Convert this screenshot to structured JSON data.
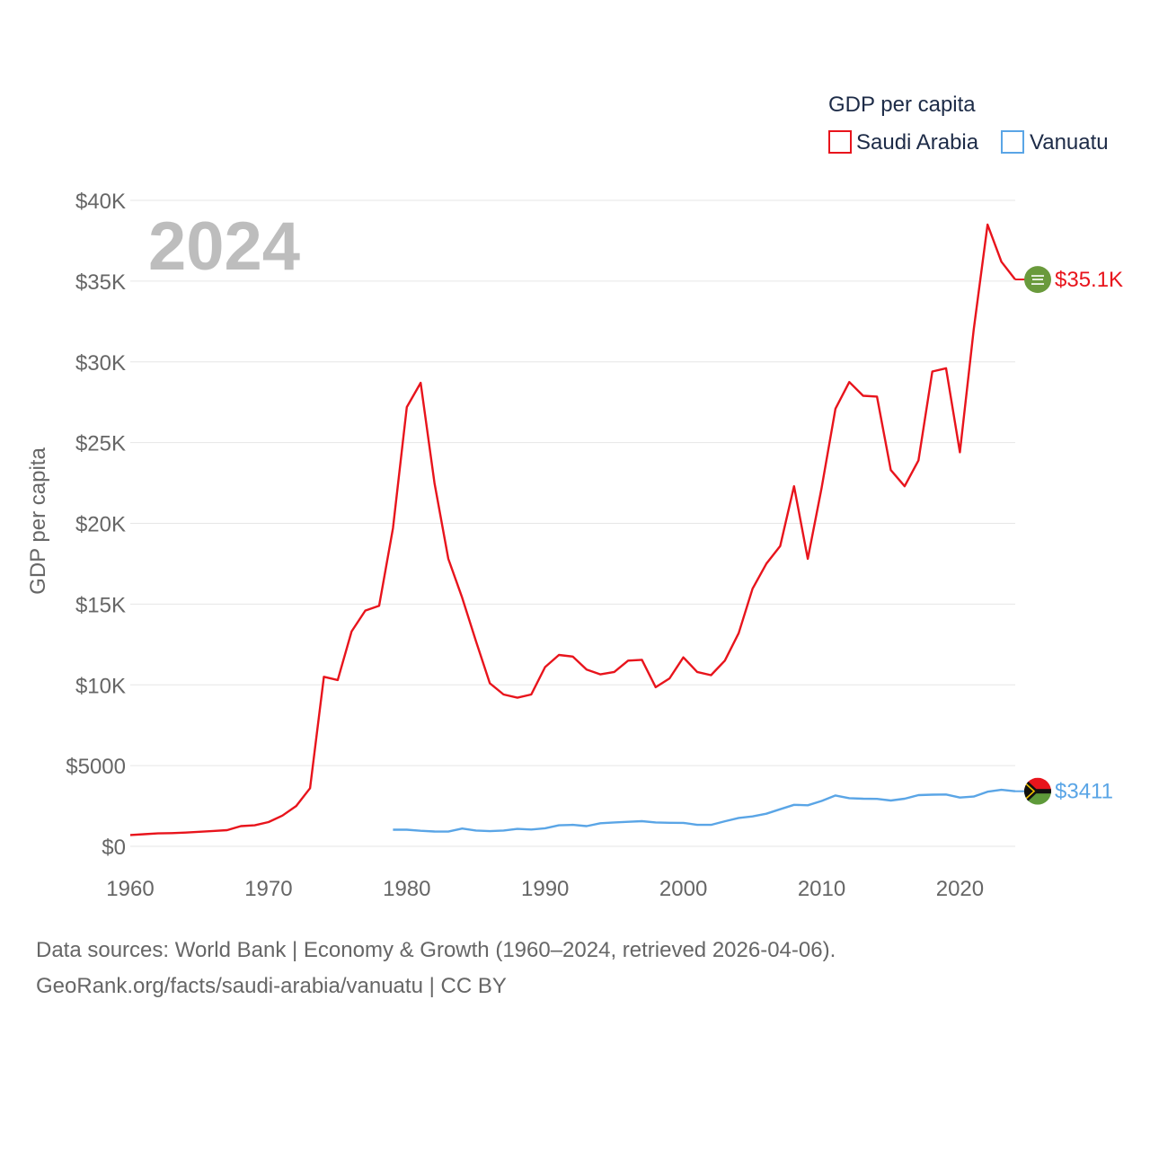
{
  "chart_data": {
    "type": "line",
    "title": "",
    "year_overlay": "2024",
    "xlabel": "",
    "ylabel": "GDP per capita",
    "xlim": [
      1960,
      2024
    ],
    "ylim": [
      0,
      40000
    ],
    "x_ticks": [
      1960,
      1970,
      1980,
      1990,
      2000,
      2010,
      2020
    ],
    "x_tick_labels": [
      "1960",
      "1970",
      "1980",
      "1990",
      "2000",
      "2010",
      "2020"
    ],
    "y_ticks": [
      0,
      5000,
      10000,
      15000,
      20000,
      25000,
      30000,
      35000,
      40000
    ],
    "y_tick_labels": [
      "$0",
      "$5000",
      "$10K",
      "$15K",
      "$20K",
      "$25K",
      "$30K",
      "$35K",
      "$40K"
    ],
    "grid": true,
    "legend": {
      "title": "GDP per capita",
      "position": "top-right"
    },
    "series": [
      {
        "name": "Saudi Arabia",
        "color": "#e8141c",
        "end_label": "$35.1K",
        "flag_icon": "saudi-arabia-flag-icon",
        "x": [
          1960,
          1961,
          1962,
          1963,
          1964,
          1965,
          1966,
          1967,
          1968,
          1969,
          1970,
          1971,
          1972,
          1973,
          1974,
          1975,
          1976,
          1977,
          1978,
          1979,
          1980,
          1981,
          1982,
          1983,
          1984,
          1985,
          1986,
          1987,
          1988,
          1989,
          1990,
          1991,
          1992,
          1993,
          1994,
          1995,
          1996,
          1997,
          1998,
          1999,
          2000,
          2001,
          2002,
          2003,
          2004,
          2005,
          2006,
          2007,
          2008,
          2009,
          2010,
          2011,
          2012,
          2013,
          2014,
          2015,
          2016,
          2017,
          2018,
          2019,
          2020,
          2021,
          2022,
          2023,
          2024
        ],
        "values": [
          700,
          750,
          800,
          820,
          850,
          900,
          950,
          1000,
          1250,
          1300,
          1500,
          1900,
          2500,
          3600,
          10500,
          10300,
          13300,
          14600,
          14900,
          19700,
          27200,
          28700,
          22500,
          17800,
          15400,
          12700,
          10100,
          9400,
          9200,
          9400,
          11100,
          11850,
          11750,
          10950,
          10650,
          10800,
          11500,
          11550,
          9850,
          10400,
          11700,
          10800,
          10600,
          11500,
          13200,
          15950,
          17500,
          18600,
          22300,
          17800,
          22200,
          27100,
          28750,
          27900,
          27850,
          23300,
          22300,
          23900,
          29400,
          29600,
          24400,
          32000,
          38500,
          36200,
          35100
        ]
      },
      {
        "name": "Vanuatu",
        "color": "#5aa5e6",
        "end_label": "$3411",
        "flag_icon": "vanuatu-flag-icon",
        "x": [
          1979,
          1980,
          1981,
          1982,
          1983,
          1984,
          1985,
          1986,
          1987,
          1988,
          1989,
          1990,
          1991,
          1992,
          1993,
          1994,
          1995,
          1996,
          1997,
          1998,
          1999,
          2000,
          2001,
          2002,
          2003,
          2004,
          2005,
          2006,
          2007,
          2008,
          2009,
          2010,
          2011,
          2012,
          2013,
          2014,
          2015,
          2016,
          2017,
          2018,
          2019,
          2020,
          2021,
          2022,
          2023,
          2024
        ],
        "values": [
          1030,
          1030,
          960,
          920,
          910,
          1100,
          980,
          940,
          980,
          1080,
          1040,
          1120,
          1300,
          1330,
          1250,
          1430,
          1480,
          1520,
          1560,
          1480,
          1460,
          1450,
          1330,
          1330,
          1550,
          1760,
          1850,
          2020,
          2300,
          2570,
          2540,
          2810,
          3150,
          2980,
          2950,
          2940,
          2840,
          2950,
          3170,
          3200,
          3210,
          3020,
          3080,
          3380,
          3500,
          3411
        ]
      }
    ]
  },
  "footer": {
    "line1": "Data sources: World Bank | Economy & Growth (1960–2024, retrieved 2026-04-06).",
    "line2": "GeoRank.org/facts/saudi-arabia/vanuatu | CC BY"
  }
}
